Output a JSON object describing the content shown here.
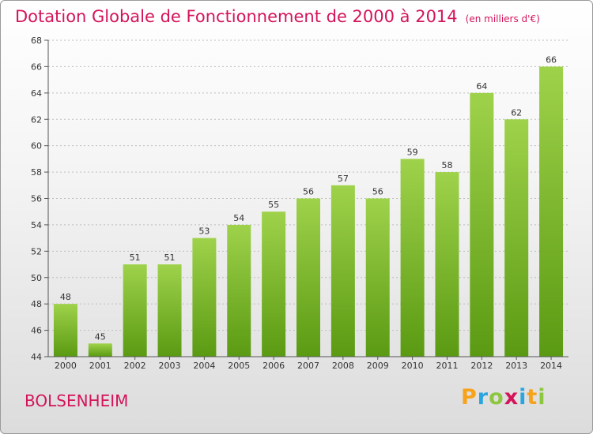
{
  "header": {
    "title": "Dotation Globale de Fonctionnement de 2000 à 2014",
    "unit": "(en milliers d'€)"
  },
  "footer": {
    "commune": "BOLSENHEIM",
    "logo_text": "Proxiti",
    "logo_letters": [
      {
        "char": "P",
        "color": "#f7a21b"
      },
      {
        "char": "r",
        "color": "#2aa6df"
      },
      {
        "char": "o",
        "color": "#8dc63f"
      },
      {
        "char": "x",
        "color": "#d4145a"
      },
      {
        "char": "i",
        "color": "#2aa6df"
      },
      {
        "char": "t",
        "color": "#f7a21b"
      },
      {
        "char": "i",
        "color": "#8dc63f"
      }
    ]
  },
  "colors": {
    "accent": "#d4145a",
    "bar_top": "#9fd24b",
    "bar_bottom": "#5a9a12",
    "grid": "#bdbdbd",
    "axis": "#555555"
  },
  "chart_data": {
    "type": "bar",
    "title": "Dotation Globale de Fonctionnement de 2000 à 2014",
    "subtitle": "(en milliers d'€)",
    "xlabel": "",
    "ylabel": "",
    "categories": [
      "2000",
      "2001",
      "2002",
      "2003",
      "2004",
      "2005",
      "2006",
      "2007",
      "2008",
      "2009",
      "2010",
      "2011",
      "2012",
      "2013",
      "2014"
    ],
    "values": [
      48,
      45,
      51,
      51,
      53,
      54,
      55,
      56,
      57,
      56,
      59,
      58,
      64,
      62,
      66
    ],
    "ylim": [
      44,
      68
    ],
    "yticks": [
      44,
      46,
      48,
      50,
      52,
      54,
      56,
      58,
      60,
      62,
      64,
      66,
      68
    ],
    "grid": true,
    "data_labels": true
  }
}
